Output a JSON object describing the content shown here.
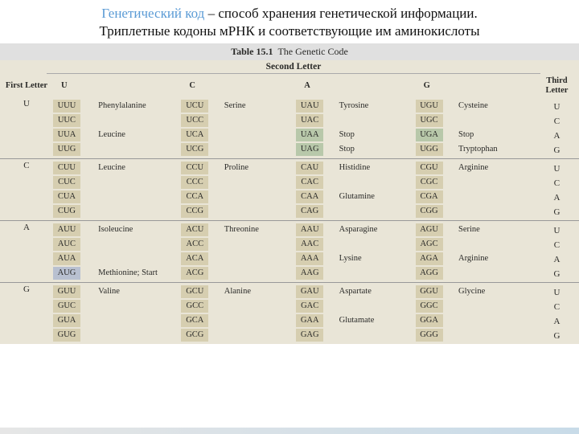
{
  "title": {
    "term": "Генетический код",
    "def": " – способ хранения генетической информации.",
    "sub": "Триплетные кодоны мРНК и соответствующие им аминокислоты"
  },
  "table": {
    "caption_bold": "Table 15.1",
    "caption_rest": "The Genetic Code",
    "first_head": "First Letter",
    "second_head": "Second Letter",
    "third_head": "Third Letter",
    "cols": [
      "U",
      "C",
      "A",
      "G"
    ],
    "thirds": [
      "U",
      "C",
      "A",
      "G"
    ],
    "rows": {
      "U": {
        "U": {
          "codons": [
            "UUU",
            "UUC",
            "UUA",
            "UUG"
          ],
          "aa": [
            "Phenylalanine",
            "",
            "Leucine",
            ""
          ]
        },
        "C": {
          "codons": [
            "UCU",
            "UCC",
            "UCA",
            "UCG"
          ],
          "aa": [
            "Serine",
            "",
            "",
            ""
          ]
        },
        "A": {
          "codons": [
            "UAU",
            "UAC",
            "UAA",
            "UAG"
          ],
          "aa": [
            "Tyrosine",
            "",
            "Stop",
            "Stop"
          ],
          "stopIdx": [
            2,
            3
          ]
        },
        "G": {
          "codons": [
            "UGU",
            "UGC",
            "UGA",
            "UGG"
          ],
          "aa": [
            "Cysteine",
            "",
            "Stop",
            "Tryptophan"
          ],
          "stopIdx": [
            2
          ]
        }
      },
      "C": {
        "U": {
          "codons": [
            "CUU",
            "CUC",
            "CUA",
            "CUG"
          ],
          "aa": [
            "Leucine",
            "",
            "",
            ""
          ]
        },
        "C": {
          "codons": [
            "CCU",
            "CCC",
            "CCA",
            "CCG"
          ],
          "aa": [
            "Proline",
            "",
            "",
            ""
          ]
        },
        "A": {
          "codons": [
            "CAU",
            "CAC",
            "CAA",
            "CAG"
          ],
          "aa": [
            "Histidine",
            "",
            "Glutamine",
            ""
          ]
        },
        "G": {
          "codons": [
            "CGU",
            "CGC",
            "CGA",
            "CGG"
          ],
          "aa": [
            "Arginine",
            "",
            "",
            ""
          ]
        }
      },
      "A": {
        "U": {
          "codons": [
            "AUU",
            "AUC",
            "AUA",
            "AUG"
          ],
          "aa": [
            "Isoleucine",
            "",
            "",
            "Methionine; Start"
          ],
          "startIdx": [
            3
          ]
        },
        "C": {
          "codons": [
            "ACU",
            "ACC",
            "ACA",
            "ACG"
          ],
          "aa": [
            "Threonine",
            "",
            "",
            ""
          ]
        },
        "A": {
          "codons": [
            "AAU",
            "AAC",
            "AAA",
            "AAG"
          ],
          "aa": [
            "Asparagine",
            "",
            "Lysine",
            ""
          ]
        },
        "G": {
          "codons": [
            "AGU",
            "AGC",
            "AGA",
            "AGG"
          ],
          "aa": [
            "Serine",
            "",
            "Arginine",
            ""
          ]
        }
      },
      "G": {
        "U": {
          "codons": [
            "GUU",
            "GUC",
            "GUA",
            "GUG"
          ],
          "aa": [
            "Valine",
            "",
            "",
            ""
          ]
        },
        "C": {
          "codons": [
            "GCU",
            "GCC",
            "GCA",
            "GCG"
          ],
          "aa": [
            "Alanine",
            "",
            "",
            ""
          ]
        },
        "A": {
          "codons": [
            "GAU",
            "GAC",
            "GAA",
            "GAG"
          ],
          "aa": [
            "Aspartate",
            "",
            "Glutamate",
            ""
          ]
        },
        "G": {
          "codons": [
            "GGU",
            "GGC",
            "GGA",
            "GGG"
          ],
          "aa": [
            "Glycine",
            "",
            "",
            ""
          ]
        }
      }
    }
  },
  "colors": {
    "codon_bg": "#d6ceb0",
    "stop_bg": "#b8c8aa",
    "start_bg": "#b8c0d0",
    "table_bg": "#e9e5d7",
    "term_color": "#5b9bd5"
  }
}
